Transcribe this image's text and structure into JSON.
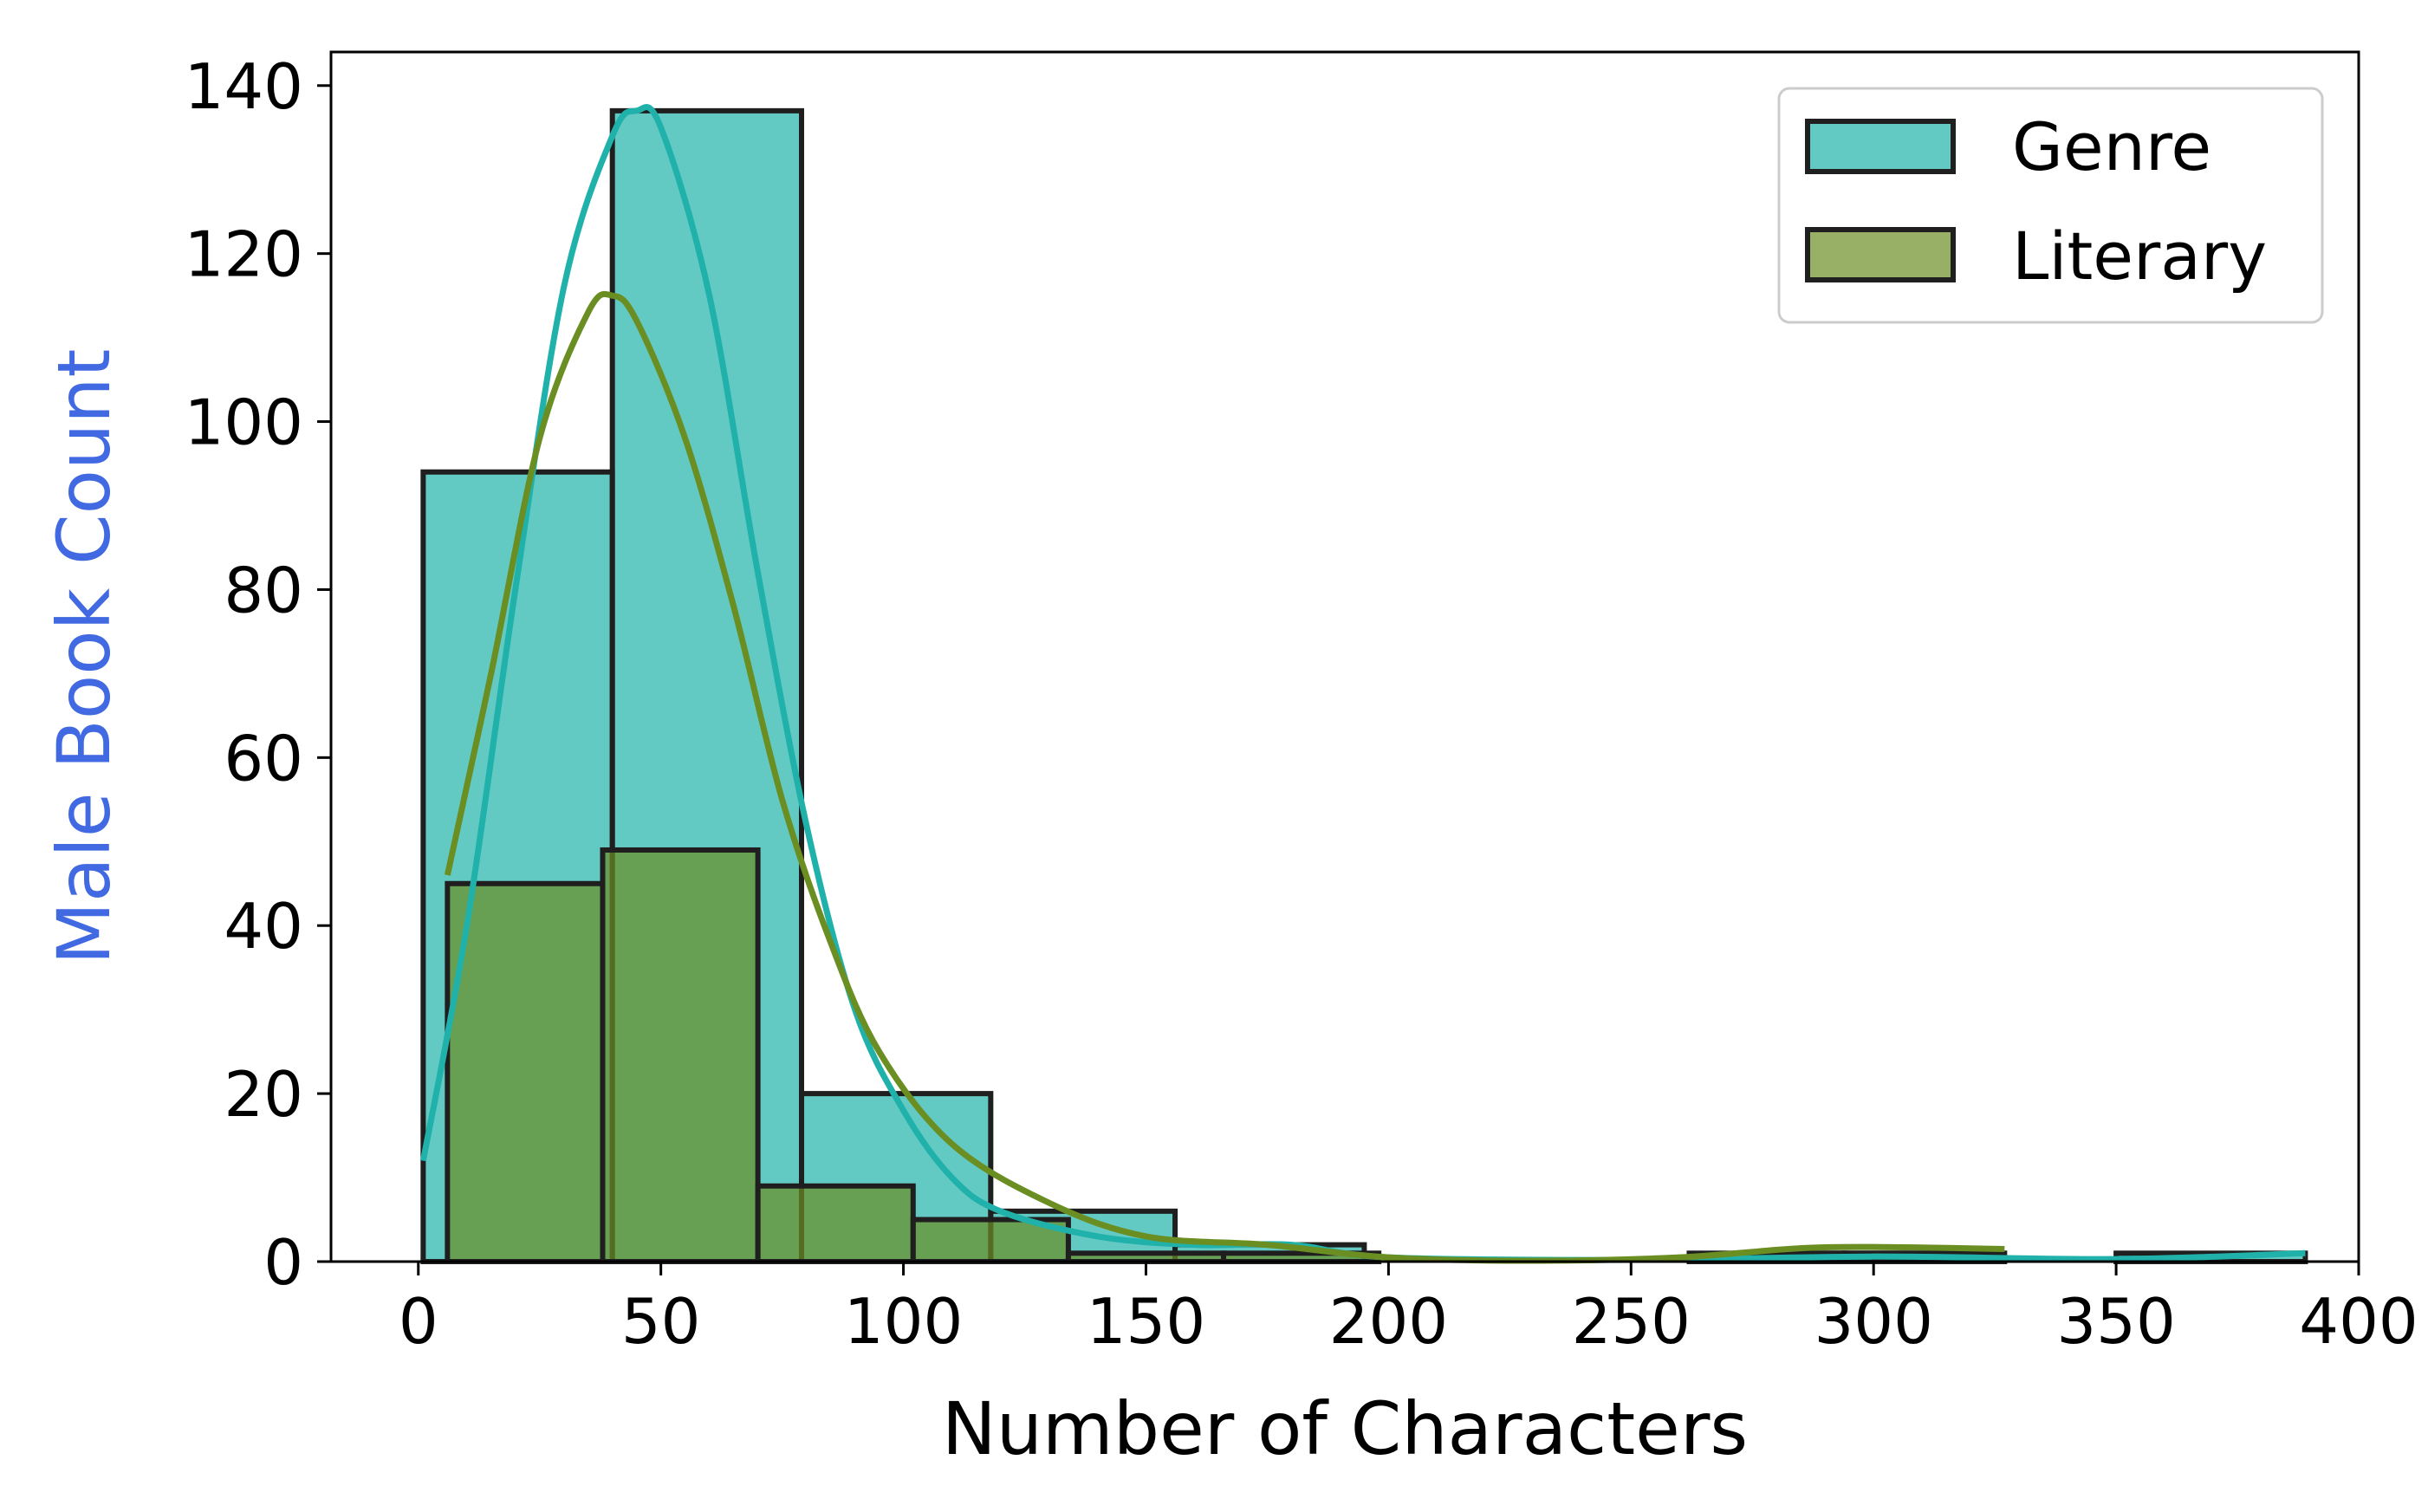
{
  "chart_data": {
    "type": "bar",
    "xlabel": "Number of Characters",
    "ylabel": "Male Book Count",
    "xlim": [
      -18,
      400
    ],
    "ylim": [
      0,
      144
    ],
    "xticks": [
      0,
      50,
      100,
      150,
      200,
      250,
      300,
      350,
      400
    ],
    "yticks": [
      0,
      20,
      40,
      60,
      80,
      100,
      120,
      140
    ],
    "grid": false,
    "legend_position": "top-right",
    "series": [
      {
        "name": "Genre",
        "color": "#20b2aa",
        "bins": [
          {
            "x0": 1,
            "x1": 40,
            "count": 94
          },
          {
            "x0": 40,
            "x1": 79,
            "count": 137
          },
          {
            "x0": 79,
            "x1": 118,
            "count": 20
          },
          {
            "x0": 118,
            "x1": 156,
            "count": 6
          },
          {
            "x0": 156,
            "x1": 195,
            "count": 2
          },
          {
            "x0": 195,
            "x1": 234,
            "count": 0
          },
          {
            "x0": 234,
            "x1": 272,
            "count": 0
          },
          {
            "x0": 272,
            "x1": 311,
            "count": 1
          },
          {
            "x0": 311,
            "x1": 350,
            "count": 0
          },
          {
            "x0": 350,
            "x1": 389,
            "count": 1
          }
        ],
        "kde": [
          [
            1,
            12
          ],
          [
            10,
            40
          ],
          [
            20,
            80
          ],
          [
            30,
            116
          ],
          [
            40,
            134
          ],
          [
            45,
            137
          ],
          [
            50,
            135
          ],
          [
            60,
            115
          ],
          [
            70,
            82
          ],
          [
            80,
            52
          ],
          [
            90,
            30
          ],
          [
            100,
            18
          ],
          [
            110,
            10
          ],
          [
            120,
            6
          ],
          [
            140,
            3
          ],
          [
            160,
            2
          ],
          [
            180,
            2
          ],
          [
            200,
            0.5
          ],
          [
            250,
            0.2
          ],
          [
            300,
            0.6
          ],
          [
            350,
            0.3
          ],
          [
            389,
            1
          ]
        ]
      },
      {
        "name": "Literary",
        "color": "#6b8e23",
        "bins": [
          {
            "x0": 6,
            "x1": 38,
            "count": 45
          },
          {
            "x0": 38,
            "x1": 70,
            "count": 49
          },
          {
            "x0": 70,
            "x1": 102,
            "count": 9
          },
          {
            "x0": 102,
            "x1": 134,
            "count": 5
          },
          {
            "x0": 134,
            "x1": 166,
            "count": 1
          },
          {
            "x0": 166,
            "x1": 198,
            "count": 1
          },
          {
            "x0": 198,
            "x1": 230,
            "count": 0
          },
          {
            "x0": 230,
            "x1": 262,
            "count": 0
          },
          {
            "x0": 262,
            "x1": 294,
            "count": 1
          },
          {
            "x0": 294,
            "x1": 327,
            "count": 1
          }
        ],
        "kde": [
          [
            6,
            46
          ],
          [
            15,
            70
          ],
          [
            25,
            98
          ],
          [
            35,
            113
          ],
          [
            40,
            115
          ],
          [
            45,
            112
          ],
          [
            55,
            98
          ],
          [
            65,
            78
          ],
          [
            75,
            55
          ],
          [
            85,
            38
          ],
          [
            95,
            25
          ],
          [
            110,
            14
          ],
          [
            130,
            7
          ],
          [
            150,
            3
          ],
          [
            175,
            2
          ],
          [
            200,
            0.5
          ],
          [
            230,
            0.1
          ],
          [
            260,
            0.5
          ],
          [
            290,
            1.7
          ],
          [
            327,
            1.5
          ]
        ]
      }
    ]
  }
}
